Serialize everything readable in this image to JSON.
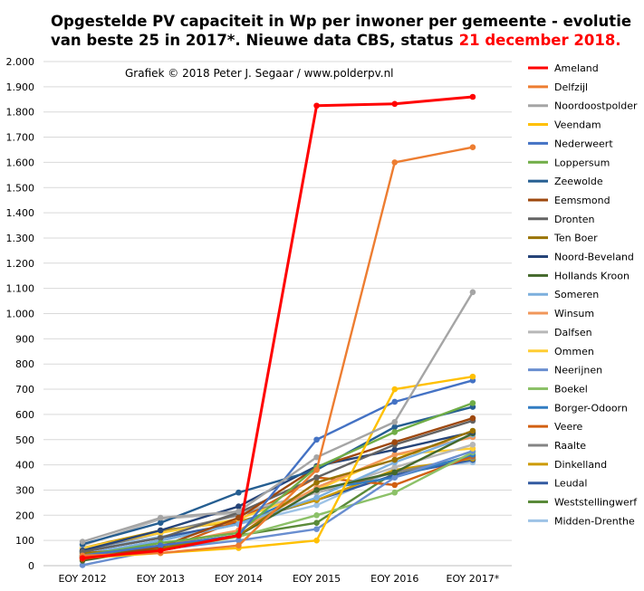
{
  "chart_data": {
    "type": "line",
    "title_main": "Opgestelde PV capaciteit in Wp per inwoner per gemeente - evolutie van beste 25 in 2017*. Nieuwe data CBS, status",
    "title_line1": "Opgestelde PV capaciteit in Wp per inwoner per gemeente - evolutie",
    "title_line2": "van beste 25 in 2017*. Nieuwe data CBS, status",
    "title_highlight": "21 december 2018.",
    "title_highlight_color": "#ff0000",
    "credit": "Grafiek  © 2018  Peter J. Segaar / www.polderpv.nl",
    "categories": [
      "EOY 2012",
      "EOY 2013",
      "EOY 2014",
      "EOY 2015",
      "EOY 2016",
      "EOY 2017*"
    ],
    "ylim": [
      0,
      2000
    ],
    "yticks": [
      0,
      100,
      200,
      300,
      400,
      500,
      600,
      700,
      800,
      900,
      1000,
      1100,
      1200,
      1300,
      1400,
      1500,
      1600,
      1700,
      1800,
      1900,
      2000
    ],
    "ytick_labels": [
      "0",
      "100",
      "200",
      "300",
      "400",
      "500",
      "600",
      "700",
      "800",
      "900",
      "1.000",
      "1.100",
      "1.200",
      "1.300",
      "1.400",
      "1.500",
      "1.600",
      "1.700",
      "1.800",
      "1.900",
      "2.000"
    ],
    "grid": true,
    "legend_position": "right",
    "series": [
      {
        "name": "Ameland",
        "color": "#ff0000",
        "values": [
          30,
          60,
          120,
          1825,
          1832,
          1860
        ]
      },
      {
        "name": "Delfzijl",
        "color": "#ed7d31",
        "values": [
          40,
          50,
          80,
          380,
          1600,
          1660
        ]
      },
      {
        "name": "Noordoostpolder",
        "color": "#a5a5a5",
        "values": [
          95,
          190,
          215,
          430,
          570,
          1085
        ]
      },
      {
        "name": "Veendam",
        "color": "#ffc000",
        "values": [
          30,
          50,
          70,
          100,
          700,
          750
        ]
      },
      {
        "name": "Nederweert",
        "color": "#4472c4",
        "values": [
          40,
          80,
          120,
          500,
          650,
          735
        ]
      },
      {
        "name": "Loppersum",
        "color": "#70ad47",
        "values": [
          40,
          90,
          130,
          390,
          530,
          645
        ]
      },
      {
        "name": "Zeewolde",
        "color": "#255e91",
        "values": [
          85,
          170,
          290,
          380,
          550,
          630
        ]
      },
      {
        "name": "Eemsmond",
        "color": "#9e480e",
        "values": [
          25,
          75,
          190,
          390,
          490,
          585
        ]
      },
      {
        "name": "Dronten",
        "color": "#636363",
        "values": [
          55,
          110,
          210,
          350,
          480,
          575
        ]
      },
      {
        "name": "Ten Boer",
        "color": "#997300",
        "values": [
          50,
          70,
          120,
          330,
          420,
          535
        ]
      },
      {
        "name": "Noord-Beveland",
        "color": "#264478",
        "values": [
          60,
          140,
          235,
          395,
          460,
          530
        ]
      },
      {
        "name": "Hollands Kroon",
        "color": "#43682b",
        "values": [
          20,
          70,
          120,
          300,
          370,
          525
        ]
      },
      {
        "name": "Someren",
        "color": "#7cafdd",
        "values": [
          45,
          100,
          165,
          270,
          410,
          520
        ]
      },
      {
        "name": "Winsum",
        "color": "#f1975a",
        "values": [
          40,
          80,
          140,
          310,
          440,
          510
        ]
      },
      {
        "name": "Dalfsen",
        "color": "#b7b7b7",
        "values": [
          80,
          185,
          210,
          290,
          390,
          480
        ]
      },
      {
        "name": "Ommen",
        "color": "#ffcd33",
        "values": [
          70,
          130,
          185,
          300,
          440,
          465
        ]
      },
      {
        "name": "Neerijnen",
        "color": "#698ed0",
        "values": [
          2,
          65,
          100,
          145,
          350,
          455
        ]
      },
      {
        "name": "Boekel",
        "color": "#8cc168",
        "values": [
          30,
          60,
          115,
          200,
          290,
          450
        ]
      },
      {
        "name": "Borger-Odoorn",
        "color": "#327dc2",
        "values": [
          35,
          100,
          165,
          300,
          350,
          440
        ]
      },
      {
        "name": "Veere",
        "color": "#d26012",
        "values": [
          35,
          60,
          180,
          350,
          320,
          435
        ]
      },
      {
        "name": "Raalte",
        "color": "#848484",
        "values": [
          60,
          130,
          200,
          290,
          370,
          430
        ]
      },
      {
        "name": "Dinkelland",
        "color": "#cc9a00",
        "values": [
          70,
          140,
          175,
          260,
          380,
          425
        ]
      },
      {
        "name": "Leudal",
        "color": "#335aa1",
        "values": [
          55,
          110,
          170,
          260,
          360,
          420
        ]
      },
      {
        "name": "Weststellingwerf",
        "color": "#5a8a39",
        "values": [
          35,
          80,
          120,
          170,
          370,
          420
        ]
      },
      {
        "name": "Midden-Drenthe",
        "color": "#9dc3e6",
        "values": [
          60,
          115,
          165,
          240,
          380,
          410
        ]
      }
    ]
  }
}
